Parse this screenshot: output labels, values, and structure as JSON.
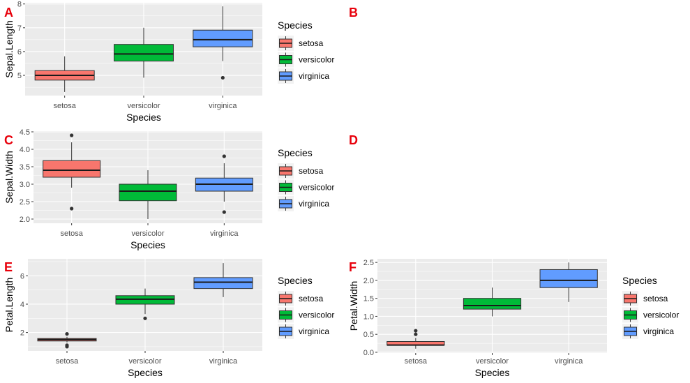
{
  "labels": {
    "A": "A",
    "B": "B",
    "C": "C",
    "D": "D",
    "E": "E",
    "F": "F"
  },
  "colors": {
    "panel_bg": "#ebebeb",
    "grid": "#ffffff",
    "label_red": "#e8000b",
    "setosa": "#f8766d",
    "versicolor": "#00ba38",
    "virginica": "#619cff"
  },
  "chart_data": [
    {
      "panel": "A",
      "type": "box",
      "xlabel": "Species",
      "ylabel": "Sepal.Length",
      "categories": [
        "setosa",
        "versicolor",
        "virginica"
      ],
      "ylim": [
        4.15,
        8.05
      ],
      "yticks": [
        "5",
        "6",
        "7",
        "8"
      ],
      "legend": {
        "title": "Species",
        "entries": [
          "setosa",
          "versicolor",
          "virginica"
        ],
        "position": "right"
      },
      "boxes": [
        {
          "category": "setosa",
          "min": 4.3,
          "q1": 4.8,
          "median": 5.0,
          "q3": 5.2,
          "max": 5.8,
          "outliers": []
        },
        {
          "category": "versicolor",
          "min": 4.9,
          "q1": 5.6,
          "median": 5.9,
          "q3": 6.3,
          "max": 7.0,
          "outliers": []
        },
        {
          "category": "virginica",
          "min": 5.6,
          "q1": 6.2,
          "median": 6.5,
          "q3": 6.9,
          "max": 7.9,
          "outliers": [
            4.9
          ]
        }
      ]
    },
    {
      "panel": "C",
      "type": "box",
      "xlabel": "Species",
      "ylabel": "Sepal.Width",
      "categories": [
        "setosa",
        "versicolor",
        "virginica"
      ],
      "ylim": [
        1.88,
        4.52
      ],
      "yticks": [
        "2.0",
        "2.5",
        "3.0",
        "3.5",
        "4.0",
        "4.5"
      ],
      "legend": {
        "title": "Species",
        "entries": [
          "setosa",
          "versicolor",
          "virginica"
        ],
        "position": "right"
      },
      "boxes": [
        {
          "category": "setosa",
          "min": 2.9,
          "q1": 3.2,
          "median": 3.4,
          "q3": 3.675,
          "max": 4.2,
          "outliers": [
            4.4,
            2.3
          ]
        },
        {
          "category": "versicolor",
          "min": 2.0,
          "q1": 2.525,
          "median": 2.8,
          "q3": 3.0,
          "max": 3.4,
          "outliers": []
        },
        {
          "category": "virginica",
          "min": 2.5,
          "q1": 2.8,
          "median": 3.0,
          "q3": 3.175,
          "max": 3.6,
          "outliers": [
            3.8,
            2.2
          ]
        }
      ]
    },
    {
      "panel": "E",
      "type": "box",
      "xlabel": "Species",
      "ylabel": "Petal.Length",
      "categories": [
        "setosa",
        "versicolor",
        "virginica"
      ],
      "ylim": [
        0.7,
        7.2
      ],
      "yticks": [
        "2",
        "4",
        "6"
      ],
      "legend": {
        "title": "Species",
        "entries": [
          "setosa",
          "versicolor",
          "virginica"
        ],
        "position": "right"
      },
      "boxes": [
        {
          "category": "setosa",
          "min": 1.3,
          "q1": 1.4,
          "median": 1.5,
          "q3": 1.575,
          "max": 1.7,
          "outliers": [
            1.9,
            1.1,
            1.0
          ]
        },
        {
          "category": "versicolor",
          "min": 3.3,
          "q1": 4.0,
          "median": 4.35,
          "q3": 4.6,
          "max": 5.1,
          "outliers": [
            3.0
          ]
        },
        {
          "category": "virginica",
          "min": 4.5,
          "q1": 5.1,
          "median": 5.55,
          "q3": 5.875,
          "max": 6.9,
          "outliers": []
        }
      ]
    },
    {
      "panel": "F",
      "type": "box",
      "xlabel": "Species",
      "ylabel": "Petal.Width",
      "categories": [
        "setosa",
        "versicolor",
        "virginica"
      ],
      "ylim": [
        -0.02,
        2.6
      ],
      "yticks": [
        "0.0",
        "0.5",
        "1.0",
        "1.5",
        "2.0",
        "2.5"
      ],
      "legend": {
        "title": "Species",
        "entries": [
          "setosa",
          "versicolor",
          "virginica"
        ],
        "position": "right"
      },
      "boxes": [
        {
          "category": "setosa",
          "min": 0.1,
          "q1": 0.2,
          "median": 0.2,
          "q3": 0.3,
          "max": 0.4,
          "outliers": [
            0.5,
            0.6
          ]
        },
        {
          "category": "versicolor",
          "min": 1.0,
          "q1": 1.2,
          "median": 1.3,
          "q3": 1.5,
          "max": 1.8,
          "outliers": []
        },
        {
          "category": "virginica",
          "min": 1.4,
          "q1": 1.8,
          "median": 2.0,
          "q3": 2.3,
          "max": 2.5,
          "outliers": []
        }
      ]
    }
  ]
}
